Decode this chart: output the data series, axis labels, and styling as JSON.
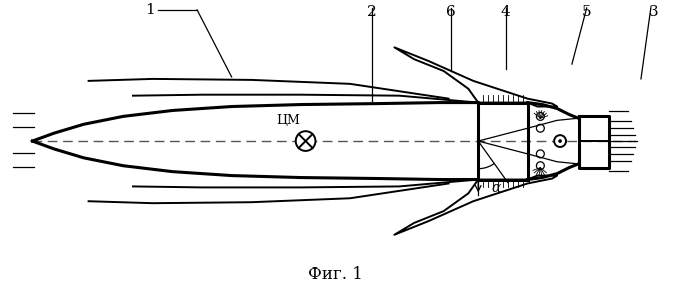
{
  "fig_label": "Фиг. 1",
  "label_1": "1",
  "label_2": "2",
  "label_3": "3",
  "label_4": "4",
  "label_5": "5",
  "label_6": "6",
  "label_cm": "ЦМ",
  "label_alpha": "α",
  "line_color": "#000000",
  "bg_color": "#ffffff"
}
